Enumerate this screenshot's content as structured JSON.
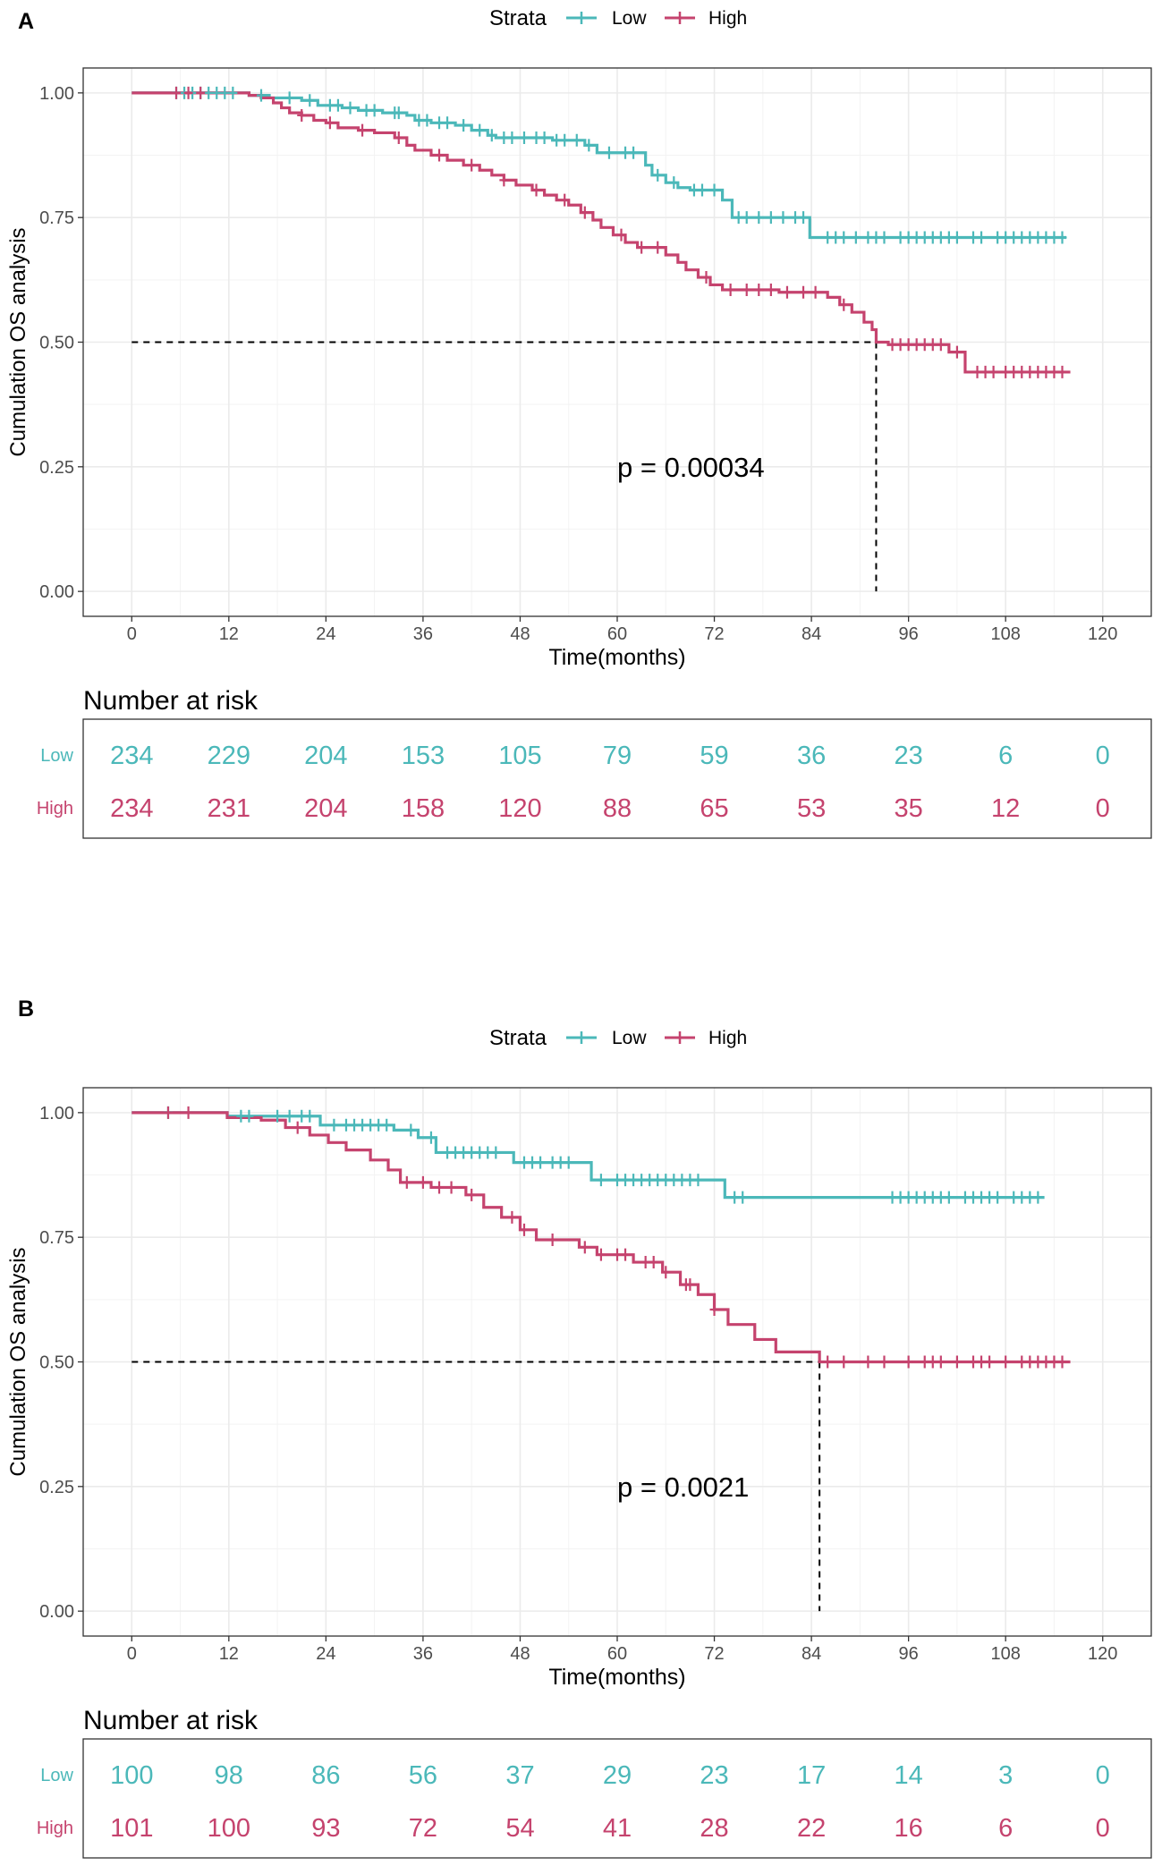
{
  "chart_data": [
    {
      "panel": "A",
      "type": "line",
      "legend": {
        "title": "Strata",
        "position": "top"
      },
      "xlabel": "Time(months)",
      "ylabel": "Cumulation OS analysis",
      "xlim": [
        -6,
        126
      ],
      "ylim": [
        -0.05,
        1.05
      ],
      "x_ticks": [
        0,
        12,
        24,
        36,
        48,
        60,
        72,
        84,
        96,
        108,
        120
      ],
      "y_ticks": [
        0,
        0.25,
        0.5,
        0.75,
        1.0
      ],
      "y_tick_labels": [
        "0.00",
        "0.25",
        "0.50",
        "0.75",
        "1.00"
      ],
      "pvalue": "p = 0.00034",
      "median_survival": 92,
      "series": [
        {
          "name": "Low",
          "color": "#4BB8B9",
          "steps": [
            [
              0,
              1
            ],
            [
              14.5,
              0.995
            ],
            [
              17,
              0.99
            ],
            [
              21,
              0.985
            ],
            [
              23,
              0.975
            ],
            [
              26,
              0.97
            ],
            [
              28,
              0.965
            ],
            [
              31,
              0.96
            ],
            [
              34,
              0.955
            ],
            [
              35,
              0.945
            ],
            [
              37,
              0.94
            ],
            [
              40,
              0.935
            ],
            [
              42,
              0.925
            ],
            [
              44,
              0.915
            ],
            [
              45,
              0.91
            ],
            [
              52,
              0.905
            ],
            [
              56,
              0.895
            ],
            [
              57.5,
              0.88
            ],
            [
              63.5,
              0.855
            ],
            [
              64.3,
              0.835
            ],
            [
              66,
              0.82
            ],
            [
              67.5,
              0.81
            ],
            [
              69,
              0.805
            ],
            [
              73,
              0.785
            ],
            [
              74.2,
              0.75
            ],
            [
              83.8,
              0.71
            ]
          ],
          "end": 115.5,
          "censored": [
            5.5,
            6.5,
            7.5,
            8.5,
            9.5,
            10.5,
            11.5,
            12.5,
            16,
            19.5,
            22,
            24.5,
            25.5,
            27,
            29,
            30,
            32.5,
            33,
            35.5,
            36.5,
            38,
            39,
            41,
            43,
            44.5,
            46,
            47,
            48.5,
            50,
            51,
            52.5,
            53.5,
            55,
            56.5,
            59,
            61,
            62,
            65,
            67,
            69.5,
            70.5,
            72,
            75,
            76,
            77.5,
            79,
            80.5,
            82,
            83,
            86,
            87,
            88,
            89.5,
            91,
            92,
            93,
            95,
            96,
            97,
            98,
            99,
            100,
            101,
            102,
            104,
            105,
            107,
            108,
            109,
            110,
            111,
            112,
            113,
            114,
            115
          ]
        },
        {
          "name": "High",
          "color": "#C5436E",
          "steps": [
            [
              0,
              1
            ],
            [
              14.5,
              0.995
            ],
            [
              16,
              0.99
            ],
            [
              17.5,
              0.98
            ],
            [
              18.5,
              0.97
            ],
            [
              19.5,
              0.96
            ],
            [
              21,
              0.955
            ],
            [
              22.5,
              0.945
            ],
            [
              24,
              0.94
            ],
            [
              25.5,
              0.93
            ],
            [
              28,
              0.925
            ],
            [
              30,
              0.92
            ],
            [
              32.5,
              0.91
            ],
            [
              34,
              0.895
            ],
            [
              35,
              0.885
            ],
            [
              37,
              0.875
            ],
            [
              39,
              0.865
            ],
            [
              41,
              0.855
            ],
            [
              43,
              0.845
            ],
            [
              44.5,
              0.835
            ],
            [
              46,
              0.825
            ],
            [
              47.5,
              0.815
            ],
            [
              49.5,
              0.805
            ],
            [
              51,
              0.795
            ],
            [
              52.5,
              0.785
            ],
            [
              54,
              0.775
            ],
            [
              55.5,
              0.76
            ],
            [
              57,
              0.745
            ],
            [
              58,
              0.73
            ],
            [
              59.5,
              0.715
            ],
            [
              61,
              0.7
            ],
            [
              62.5,
              0.69
            ],
            [
              66,
              0.675
            ],
            [
              67.5,
              0.66
            ],
            [
              68.5,
              0.645
            ],
            [
              70,
              0.63
            ],
            [
              71.5,
              0.615
            ],
            [
              73,
              0.605
            ],
            [
              80,
              0.6
            ],
            [
              86,
              0.59
            ],
            [
              87.5,
              0.575
            ],
            [
              89,
              0.56
            ],
            [
              90.5,
              0.54
            ],
            [
              91.5,
              0.525
            ],
            [
              92,
              0.5
            ],
            [
              93.5,
              0.495
            ],
            [
              101,
              0.48
            ],
            [
              103,
              0.44
            ]
          ],
          "end": 116,
          "censored": [
            5.5,
            7,
            8.5,
            21,
            24.5,
            28.5,
            33,
            38,
            42,
            46,
            50,
            53.5,
            56,
            60.5,
            63,
            65,
            71,
            74,
            76,
            77.5,
            79,
            81,
            83,
            84.5,
            88,
            94,
            95,
            96,
            97,
            98,
            99,
            100,
            102,
            104.5,
            105.5,
            106.5,
            108,
            109,
            110,
            111,
            112,
            113,
            114,
            115
          ]
        }
      ],
      "risk_table": {
        "title": "Number at risk",
        "times": [
          0,
          12,
          24,
          36,
          48,
          60,
          72,
          84,
          96,
          108,
          120
        ],
        "rows": [
          {
            "name": "Low",
            "values": [
              "234",
              "229",
              "204",
              "153",
              "105",
              "79",
              "59",
              "36",
              "23",
              "6",
              "0"
            ]
          },
          {
            "name": "High",
            "values": [
              "234",
              "231",
              "204",
              "158",
              "120",
              "88",
              "65",
              "53",
              "35",
              "12",
              "0"
            ]
          }
        ]
      }
    },
    {
      "panel": "B",
      "type": "line",
      "legend": {
        "title": "Strata",
        "position": "top"
      },
      "xlabel": "Time(months)",
      "ylabel": "Cumulation OS analysis",
      "xlim": [
        -6,
        126
      ],
      "ylim": [
        -0.05,
        1.05
      ],
      "x_ticks": [
        0,
        12,
        24,
        36,
        48,
        60,
        72,
        84,
        96,
        108,
        120
      ],
      "y_ticks": [
        0,
        0.25,
        0.5,
        0.75,
        1.0
      ],
      "y_tick_labels": [
        "0.00",
        "0.25",
        "0.50",
        "0.75",
        "1.00"
      ],
      "pvalue": "p = 0.0021",
      "median_survival": 85,
      "series": [
        {
          "name": "Low",
          "color": "#4BB8B9",
          "steps": [
            [
              0,
              1
            ],
            [
              11.8,
              0.993
            ],
            [
              23.3,
              0.975
            ],
            [
              32.4,
              0.965
            ],
            [
              35.4,
              0.95
            ],
            [
              37.6,
              0.92
            ],
            [
              47.2,
              0.9
            ],
            [
              56.8,
              0.865
            ],
            [
              73.3,
              0.83
            ]
          ],
          "end": 112.8,
          "censored": [
            4.5,
            13.5,
            14.5,
            18,
            19.5,
            21,
            22,
            25,
            26.5,
            27.5,
            28.5,
            29.5,
            30.5,
            31.5,
            34.5,
            37,
            39,
            40,
            41,
            42,
            43,
            44,
            45,
            48.5,
            49.5,
            50.5,
            52,
            53,
            54,
            58,
            60,
            61,
            62,
            63,
            64,
            65,
            66,
            67,
            68,
            69,
            70,
            74.5,
            75.5,
            94,
            95,
            96,
            97,
            98,
            99,
            100,
            101,
            103,
            104,
            105,
            106,
            107,
            109,
            110,
            111,
            112
          ]
        },
        {
          "name": "High",
          "color": "#C5436E",
          "steps": [
            [
              0,
              1
            ],
            [
              11.8,
              0.99
            ],
            [
              16,
              0.985
            ],
            [
              19,
              0.97
            ],
            [
              22,
              0.955
            ],
            [
              24.3,
              0.94
            ],
            [
              26.5,
              0.925
            ],
            [
              29.5,
              0.905
            ],
            [
              31.7,
              0.885
            ],
            [
              33.2,
              0.86
            ],
            [
              37,
              0.85
            ],
            [
              41.3,
              0.835
            ],
            [
              43.5,
              0.81
            ],
            [
              45.7,
              0.79
            ],
            [
              48,
              0.765
            ],
            [
              50,
              0.745
            ],
            [
              55.3,
              0.73
            ],
            [
              57.5,
              0.715
            ],
            [
              62,
              0.7
            ],
            [
              65.6,
              0.68
            ],
            [
              67.8,
              0.655
            ],
            [
              70,
              0.635
            ],
            [
              72,
              0.605
            ],
            [
              73.7,
              0.575
            ],
            [
              77,
              0.545
            ],
            [
              79.6,
              0.52
            ],
            [
              85,
              0.5
            ]
          ],
          "end": 116,
          "censored": [
            4.5,
            7,
            20.5,
            34,
            36,
            38,
            39.5,
            42,
            47,
            48.5,
            52,
            56,
            58,
            60,
            61,
            63.5,
            64.5,
            66,
            68.5,
            69,
            72,
            86,
            88,
            91,
            93,
            96,
            98,
            99,
            100,
            102,
            104,
            105,
            106,
            108,
            110,
            111,
            112,
            113,
            114,
            115
          ]
        }
      ],
      "risk_table": {
        "title": "Number at risk",
        "times": [
          0,
          12,
          24,
          36,
          48,
          60,
          72,
          84,
          96,
          108,
          120
        ],
        "rows": [
          {
            "name": "Low",
            "values": [
              "100",
              "98",
              "86",
              "56",
              "37",
              "29",
              "23",
              "17",
              "14",
              "3",
              "0"
            ]
          },
          {
            "name": "High",
            "values": [
              "101",
              "100",
              "93",
              "72",
              "54",
              "41",
              "28",
              "22",
              "16",
              "6",
              "0"
            ]
          }
        ]
      }
    }
  ]
}
